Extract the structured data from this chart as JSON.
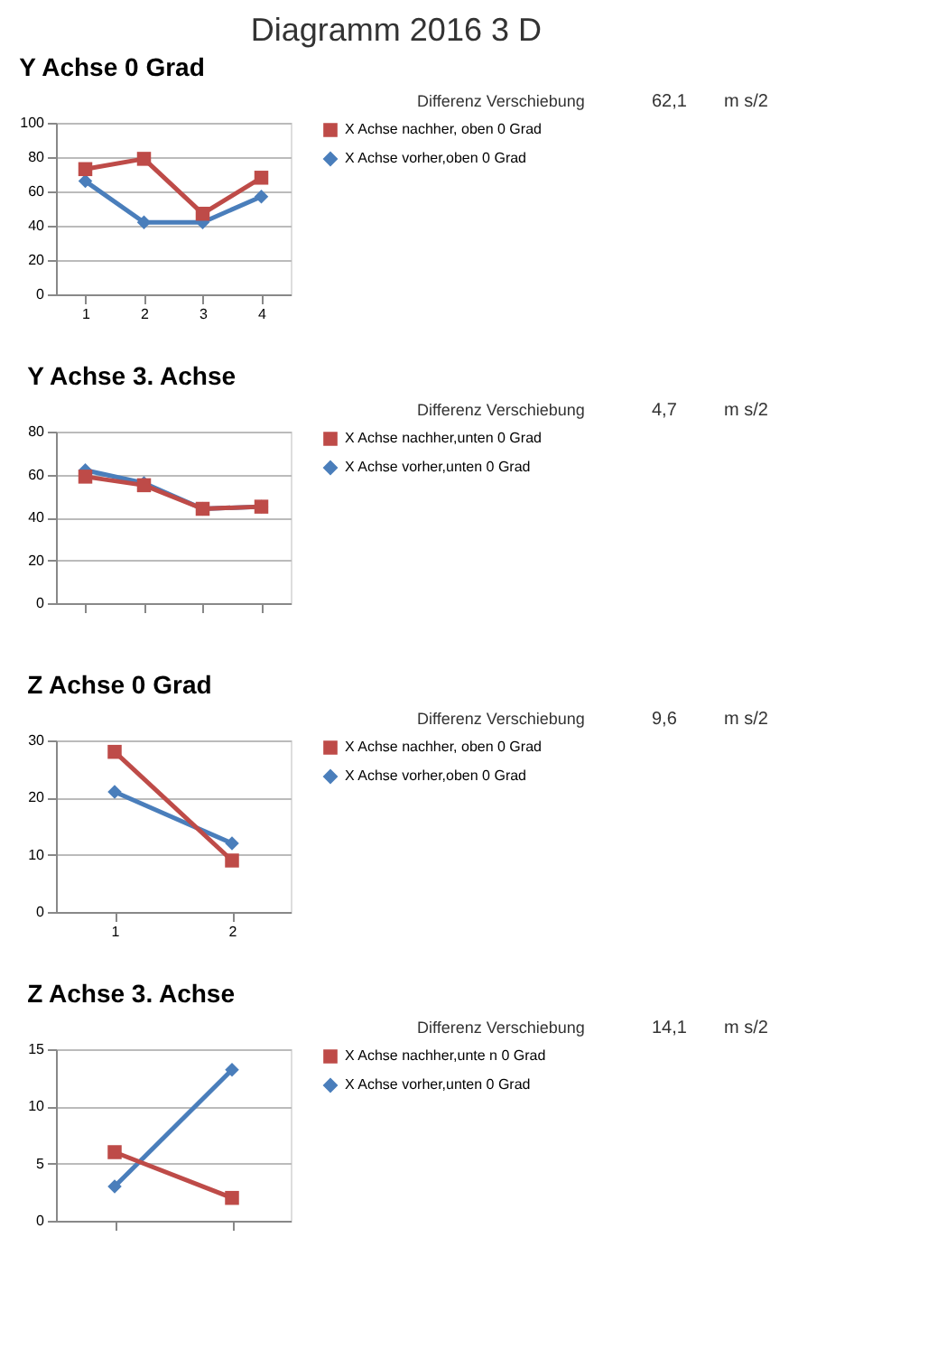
{
  "chart_data": [
    {
      "type": "line",
      "title": "Diagramm 2016   3 D",
      "subtitle": "Y Achse   0 Grad",
      "annotations": [
        "Differenz  Verschiebung",
        "62,1",
        "m  s/2"
      ],
      "categories": [
        "1",
        "2",
        "3",
        "4"
      ],
      "ylim": [
        0,
        100
      ],
      "yticks": [
        0,
        20,
        40,
        60,
        80,
        100
      ],
      "grid": "y",
      "legend": "right",
      "series": [
        {
          "name": "X Achse nachher, oben 0 Grad",
          "color": "#be4b48",
          "marker": "square",
          "values": [
            73,
            79,
            47,
            68
          ]
        },
        {
          "name": "X Achse vorher,oben 0 Grad",
          "color": "#4a7ebb",
          "marker": "diamond",
          "values": [
            66,
            42,
            42,
            57
          ]
        }
      ]
    },
    {
      "type": "line",
      "title": "Y Achse   3. Achse",
      "annotations": [
        "Differenz  Verschiebung",
        "4,7",
        "m  s/2"
      ],
      "categories": [
        null,
        null,
        null,
        null
      ],
      "ylim": [
        0,
        80
      ],
      "yticks": [
        0,
        20,
        40,
        60,
        80
      ],
      "grid": "y",
      "legend": "right",
      "series": [
        {
          "name": "X Achse nachher,unten 0 Grad",
          "color": "#be4b48",
          "marker": "square",
          "values": [
            59,
            55,
            44,
            45
          ]
        },
        {
          "name": "X Achse vorher,unten 0 Grad",
          "color": "#4a7ebb",
          "marker": "diamond",
          "values": [
            62,
            56,
            44,
            45
          ]
        }
      ]
    },
    {
      "type": "line",
      "title": "Z Achse   0 Grad",
      "annotations": [
        "Differenz  Verschiebung",
        "9,6",
        "m  s/2"
      ],
      "categories": [
        "1",
        "2"
      ],
      "ylim": [
        0,
        30
      ],
      "yticks": [
        0,
        10,
        20,
        30
      ],
      "grid": "y",
      "legend": "right",
      "series": [
        {
          "name": "X Achse nachher, oben 0 Grad",
          "color": "#be4b48",
          "marker": "square",
          "values": [
            28,
            9
          ]
        },
        {
          "name": "X Achse vorher,oben 0 Grad",
          "color": "#4a7ebb",
          "marker": "diamond",
          "values": [
            21,
            12
          ]
        }
      ]
    },
    {
      "type": "line",
      "title": "Z Achse    3. Achse",
      "annotations": [
        "Differenz  Verschiebung",
        "14,1",
        "m  s/2"
      ],
      "categories": [
        null,
        null
      ],
      "ylim": [
        0,
        15
      ],
      "yticks": [
        0,
        5,
        10,
        15
      ],
      "grid": "y",
      "legend": "right",
      "series": [
        {
          "name": "X Achse nachher,unte n 0 Grad",
          "color": "#be4b48",
          "marker": "square",
          "values": [
            6,
            2
          ]
        },
        {
          "name": "X Achse vorher,unten 0 Grad",
          "color": "#4a7ebb",
          "marker": "diamond",
          "values": [
            3,
            13.2
          ]
        }
      ]
    }
  ]
}
